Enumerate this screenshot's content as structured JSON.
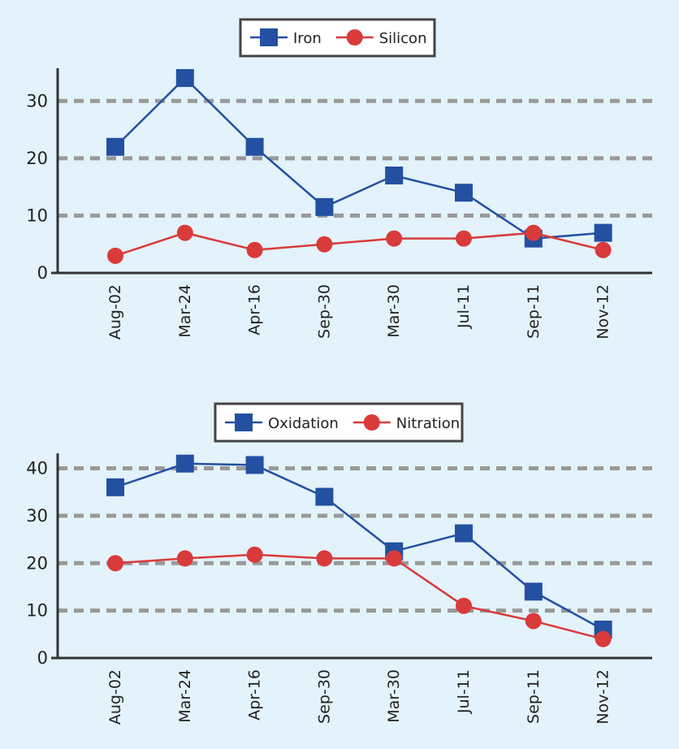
{
  "colors": {
    "background": "#e3f2fb",
    "series_blue": "#2350a0",
    "series_red": "#d93a3a",
    "grid": "#999999",
    "axis": "#333333"
  },
  "chart_data": [
    {
      "type": "line",
      "title": "",
      "xlabel": "",
      "ylabel": "",
      "categories": [
        "Aug-02",
        "Mar-24",
        "Apr-16",
        "Sep-30",
        "Mar-30",
        "Jul-11",
        "Sep-11",
        "Nov-12"
      ],
      "ylim": [
        0,
        35
      ],
      "yticks": [
        0,
        10,
        20,
        30
      ],
      "grid": "horizontal dashed",
      "legend": "top-center",
      "series": [
        {
          "name": "Iron",
          "marker": "square",
          "color": "#2350a0",
          "values": [
            22,
            34,
            22,
            11.5,
            17,
            14,
            6,
            7
          ]
        },
        {
          "name": "Silicon",
          "marker": "circle",
          "color": "#d93a3a",
          "values": [
            3,
            7,
            4,
            5,
            6,
            6,
            7,
            4
          ]
        }
      ]
    },
    {
      "type": "line",
      "title": "",
      "xlabel": "",
      "ylabel": "",
      "categories": [
        "Aug-02",
        "Mar-24",
        "Apr-16",
        "Sep-30",
        "Mar-30",
        "Jul-11",
        "Sep-11",
        "Nov-12"
      ],
      "ylim": [
        0,
        43
      ],
      "yticks": [
        0,
        10,
        20,
        30,
        40
      ],
      "grid": "horizontal dashed",
      "legend": "top-center",
      "series": [
        {
          "name": "Oxidation",
          "marker": "square",
          "color": "#2350a0",
          "values": [
            36,
            41,
            40.7,
            34,
            22.5,
            26.3,
            14,
            6
          ]
        },
        {
          "name": "Nitration",
          "marker": "circle",
          "color": "#d93a3a",
          "values": [
            20,
            21,
            21.8,
            21,
            21,
            11,
            7.8,
            4
          ]
        }
      ]
    }
  ]
}
